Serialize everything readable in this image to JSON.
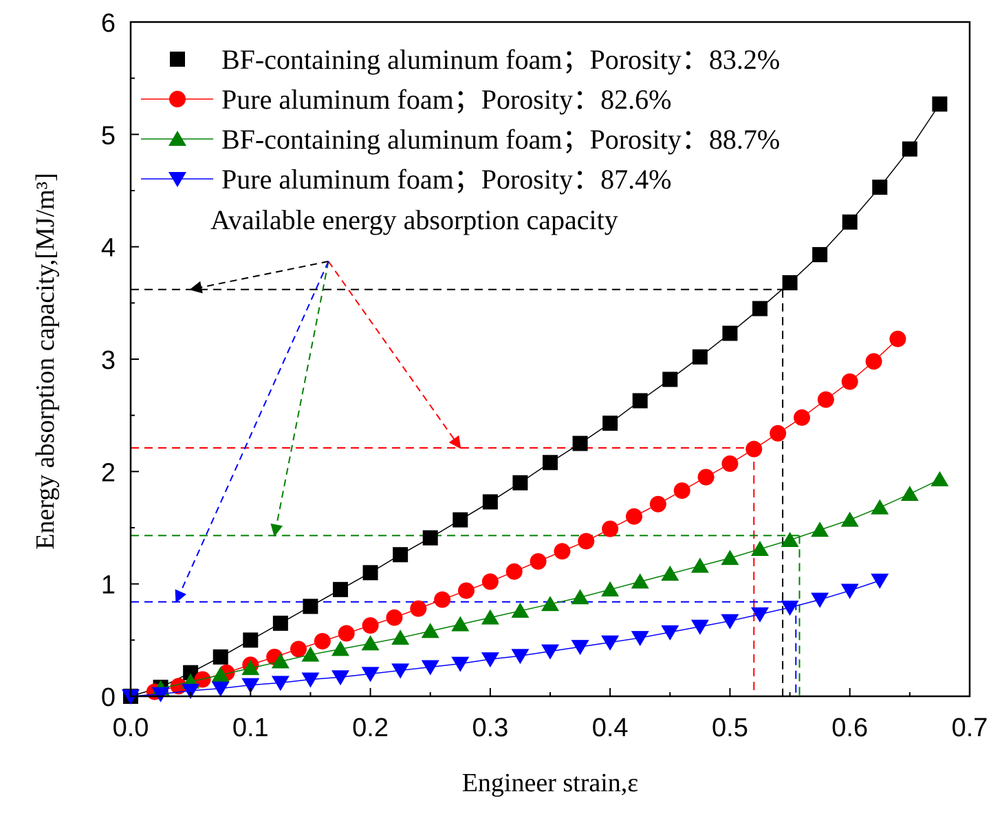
{
  "chart_data": {
    "type": "scatter",
    "xlabel": "Engineer strain,ε",
    "ylabel": "Energy absorption capacity,[MJ/m³]",
    "xlim": [
      0,
      0.7
    ],
    "ylim": [
      0,
      6
    ],
    "xticks": [
      "0.0",
      "0.1",
      "0.2",
      "0.3",
      "0.4",
      "0.5",
      "0.6",
      "0.7"
    ],
    "yticks": [
      "0",
      "1",
      "2",
      "3",
      "4",
      "5",
      "6"
    ],
    "grid": false,
    "legend_position": "top-left",
    "annotation": "Available energy absorption capacity",
    "series": [
      {
        "name": "BF-containing aluminum foam；Porosity：83.2%",
        "marker": "square",
        "color": "#000000",
        "x": [
          0.0,
          0.025,
          0.05,
          0.075,
          0.1,
          0.125,
          0.15,
          0.175,
          0.2,
          0.225,
          0.25,
          0.275,
          0.3,
          0.325,
          0.35,
          0.375,
          0.4,
          0.425,
          0.45,
          0.475,
          0.5,
          0.525,
          0.55,
          0.575,
          0.6,
          0.625,
          0.65,
          0.675
        ],
        "y": [
          0.0,
          0.08,
          0.21,
          0.35,
          0.5,
          0.65,
          0.8,
          0.95,
          1.1,
          1.26,
          1.41,
          1.57,
          1.73,
          1.9,
          2.08,
          2.25,
          2.43,
          2.63,
          2.82,
          3.02,
          3.23,
          3.45,
          3.68,
          3.93,
          4.22,
          4.53,
          4.87,
          5.27
        ],
        "threshold_x": 0.544,
        "threshold_y": 3.62
      },
      {
        "name": "Pure aluminum foam；Porosity：82.6%",
        "marker": "circle",
        "color": "#ff0000",
        "x": [
          0.02,
          0.04,
          0.06,
          0.08,
          0.1,
          0.12,
          0.14,
          0.16,
          0.18,
          0.2,
          0.22,
          0.24,
          0.26,
          0.28,
          0.3,
          0.32,
          0.34,
          0.36,
          0.38,
          0.4,
          0.42,
          0.44,
          0.46,
          0.48,
          0.5,
          0.52,
          0.54,
          0.56,
          0.58,
          0.6,
          0.62,
          0.64
        ],
        "y": [
          0.04,
          0.09,
          0.15,
          0.21,
          0.28,
          0.35,
          0.42,
          0.49,
          0.56,
          0.63,
          0.7,
          0.78,
          0.86,
          0.94,
          1.02,
          1.11,
          1.2,
          1.29,
          1.38,
          1.49,
          1.6,
          1.71,
          1.83,
          1.95,
          2.07,
          2.2,
          2.34,
          2.48,
          2.64,
          2.8,
          2.98,
          3.18
        ],
        "threshold_x": 0.52,
        "threshold_y": 2.21
      },
      {
        "name": "BF-containing aluminum foam；Porosity：88.7%",
        "marker": "triangle-up",
        "color": "#008000",
        "x": [
          0.025,
          0.05,
          0.075,
          0.1,
          0.125,
          0.15,
          0.175,
          0.2,
          0.225,
          0.25,
          0.275,
          0.3,
          0.325,
          0.35,
          0.375,
          0.4,
          0.425,
          0.45,
          0.475,
          0.5,
          0.525,
          0.55,
          0.575,
          0.6,
          0.625,
          0.65,
          0.675
        ],
        "y": [
          0.07,
          0.13,
          0.19,
          0.25,
          0.31,
          0.37,
          0.42,
          0.47,
          0.52,
          0.58,
          0.64,
          0.7,
          0.76,
          0.82,
          0.88,
          0.95,
          1.02,
          1.09,
          1.16,
          1.23,
          1.31,
          1.39,
          1.48,
          1.57,
          1.68,
          1.8,
          1.93
        ],
        "threshold_x": 0.558,
        "threshold_y": 1.43
      },
      {
        "name": "Pure aluminum foam；Porosity：87.4%",
        "marker": "triangle-down",
        "color": "#0000ff",
        "x": [
          0.0,
          0.025,
          0.05,
          0.075,
          0.1,
          0.125,
          0.15,
          0.175,
          0.2,
          0.225,
          0.25,
          0.275,
          0.3,
          0.325,
          0.35,
          0.375,
          0.4,
          0.425,
          0.45,
          0.475,
          0.5,
          0.525,
          0.55,
          0.575,
          0.6,
          0.625
        ],
        "y": [
          0.0,
          0.02,
          0.05,
          0.07,
          0.1,
          0.12,
          0.15,
          0.17,
          0.2,
          0.23,
          0.26,
          0.29,
          0.33,
          0.36,
          0.4,
          0.44,
          0.48,
          0.52,
          0.57,
          0.62,
          0.67,
          0.73,
          0.79,
          0.86,
          0.94,
          1.03
        ],
        "threshold_x": 0.555,
        "threshold_y": 0.84
      }
    ]
  }
}
